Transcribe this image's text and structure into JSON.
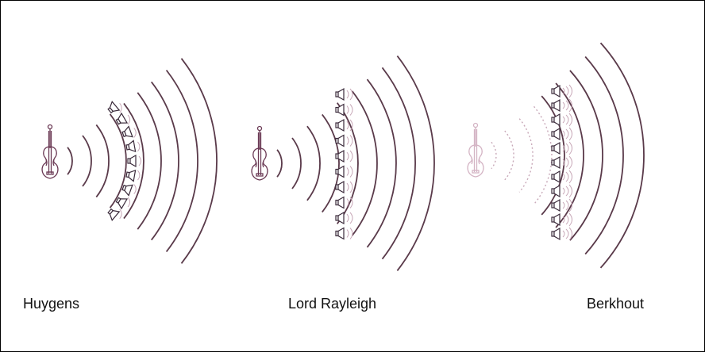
{
  "panels": [
    {
      "caption": "Huygens"
    },
    {
      "caption": "Lord Rayleigh"
    },
    {
      "caption": "Berkhout"
    }
  ],
  "colors": {
    "wave": "#5a3a4a",
    "wave_faint": "#c8a8b8",
    "violin": "#6b3a55",
    "violin_faint": "#d4b4c4",
    "speaker": "#3a2a3a",
    "border": "#000000",
    "text": "#111111"
  },
  "icons": {
    "source": "violin-icon",
    "secondary_source": "loudspeaker-icon"
  }
}
